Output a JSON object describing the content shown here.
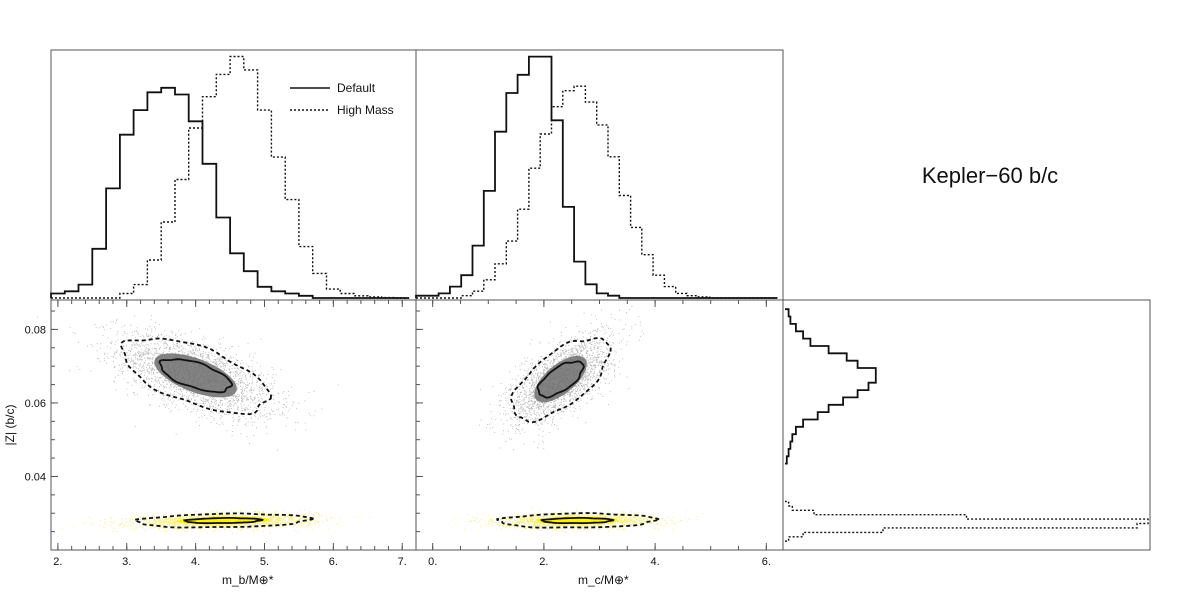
{
  "figure": {
    "title": "Kepler−60 b/c",
    "colors": {
      "frame": "#555555",
      "ink": "#111111",
      "default_cloud": "#777777",
      "high_cloud": "#f0e000",
      "high_core": "#ffee00"
    }
  },
  "chart_data": [
    {
      "type": "histogram",
      "panel": "top-left",
      "xlim": [
        1.9,
        7.2
      ],
      "legend": {
        "position": "top-right",
        "entries": [
          {
            "label": "Default",
            "style": "solid"
          },
          {
            "label": "High Mass",
            "style": "dotted"
          }
        ]
      },
      "bin_edges": [
        1.9,
        2.1,
        2.3,
        2.5,
        2.7,
        2.9,
        3.1,
        3.3,
        3.5,
        3.7,
        3.9,
        4.1,
        4.3,
        4.5,
        4.7,
        4.9,
        5.1,
        5.3,
        5.5,
        5.7,
        5.9,
        6.1,
        6.3,
        6.5,
        6.7,
        6.9,
        7.1
      ],
      "series": [
        {
          "name": "Default",
          "style": "solid",
          "values": [
            0.02,
            0.03,
            0.06,
            0.22,
            0.49,
            0.73,
            0.84,
            0.92,
            0.94,
            0.91,
            0.79,
            0.6,
            0.36,
            0.2,
            0.12,
            0.05,
            0.03,
            0.02,
            0.01,
            0,
            0,
            0,
            0,
            0,
            0,
            0
          ]
        },
        {
          "name": "High Mass",
          "style": "dotted",
          "values": [
            0,
            0,
            0,
            0,
            0,
            0.02,
            0.06,
            0.17,
            0.34,
            0.53,
            0.76,
            0.9,
            1.0,
            1.08,
            1.02,
            0.84,
            0.63,
            0.44,
            0.23,
            0.11,
            0.04,
            0.02,
            0.01,
            0.005,
            0.002,
            0
          ]
        }
      ]
    },
    {
      "type": "histogram",
      "panel": "top-middle",
      "xlim": [
        -0.5,
        6.0
      ],
      "bin_edges": [
        -0.5,
        -0.3,
        -0.1,
        0.1,
        0.3,
        0.5,
        0.7,
        0.9,
        1.1,
        1.3,
        1.5,
        1.7,
        1.9,
        2.1,
        2.3,
        2.5,
        2.7,
        2.9,
        3.1,
        3.3,
        3.5,
        3.7,
        3.9,
        4.1,
        4.3,
        4.5,
        4.7,
        4.9,
        5.1,
        5.3,
        5.5,
        5.7,
        5.9
      ],
      "series": [
        {
          "name": "Default",
          "style": "solid",
          "values": [
            0.01,
            0.01,
            0.02,
            0.05,
            0.1,
            0.23,
            0.47,
            0.73,
            0.9,
            0.98,
            1.06,
            1.06,
            0.78,
            0.4,
            0.16,
            0.06,
            0.02,
            0.01,
            0,
            0,
            0,
            0,
            0,
            0,
            0,
            0,
            0,
            0,
            0,
            0,
            0,
            0
          ]
        },
        {
          "name": "High Mass",
          "style": "dotted",
          "values": [
            0,
            0,
            0,
            0,
            0.01,
            0.03,
            0.08,
            0.15,
            0.25,
            0.39,
            0.57,
            0.72,
            0.84,
            0.91,
            0.93,
            0.86,
            0.76,
            0.62,
            0.45,
            0.31,
            0.19,
            0.1,
            0.05,
            0.02,
            0.01,
            0.005,
            0,
            0,
            0,
            0,
            0,
            0
          ]
        }
      ]
    },
    {
      "type": "scatter-density",
      "panel": "bottom-left",
      "xlabel": "m_b/M⊕*",
      "ylabel": "|Z| (b/c)",
      "xlim": [
        1.9,
        7.2
      ],
      "ylim": [
        0.02,
        0.088
      ],
      "xticks": [
        2,
        3,
        4,
        5,
        6,
        7
      ],
      "xtick_labels": [
        "2.",
        "3.",
        "4.",
        "5.",
        "6.",
        "7."
      ],
      "yticks": [
        0.04,
        0.06,
        0.08
      ],
      "ytick_labels": [
        "0.04",
        "0.06",
        "0.08"
      ],
      "clouds": [
        {
          "name": "Default",
          "center": [
            4.0,
            0.0675
          ],
          "sd": [
            0.57,
            0.0057
          ],
          "corr": -0.6,
          "contour68": [
            0.9,
            0.78
          ],
          "contour95": [
            1.2,
            1.15
          ]
        },
        {
          "name": "High Mass",
          "center": [
            4.4,
            0.028
          ],
          "sd": [
            0.65,
            0.001
          ],
          "corr": 0.2,
          "contour68": [
            0.85,
            0.7
          ],
          "contour95": [
            1.25,
            1.2
          ]
        }
      ]
    },
    {
      "type": "scatter-density",
      "panel": "bottom-middle",
      "xlabel": "m_c/M⊕*",
      "xlim": [
        -0.3,
        6.3
      ],
      "ylim": [
        0.02,
        0.088
      ],
      "xticks": [
        0,
        2,
        4,
        6
      ],
      "xtick_labels": [
        "0.",
        "2.",
        "4.",
        "6."
      ],
      "clouds": [
        {
          "name": "Default",
          "center": [
            2.3,
            0.0665
          ],
          "sd": [
            0.45,
            0.006
          ],
          "corr": 0.65,
          "contour68": [
            0.9,
            0.8
          ],
          "contour95": [
            1.25,
            1.2
          ]
        },
        {
          "name": "High Mass",
          "center": [
            2.6,
            0.028
          ],
          "sd": [
            0.7,
            0.001
          ],
          "corr": 0.1,
          "contour68": [
            0.9,
            0.7
          ],
          "contour95": [
            1.3,
            1.25
          ]
        }
      ]
    },
    {
      "type": "histogram",
      "panel": "right",
      "orientation": "horizontal",
      "ylim": [
        0.02,
        0.088
      ],
      "bin_edges": [
        0.0435,
        0.0455,
        0.0475,
        0.0495,
        0.0515,
        0.0535,
        0.0555,
        0.0575,
        0.0595,
        0.0615,
        0.0635,
        0.0655,
        0.0675,
        0.0695,
        0.0715,
        0.0735,
        0.0755,
        0.0775,
        0.0795,
        0.0815,
        0.0835,
        0.0855
      ],
      "bin_edges_high": [
        0.0224,
        0.0236,
        0.0248,
        0.026,
        0.0272,
        0.0284,
        0.0296,
        0.0308,
        0.032,
        0.0332
      ],
      "series": [
        {
          "name": "Default",
          "style": "solid",
          "values": [
            0.005,
            0.01,
            0.015,
            0.02,
            0.03,
            0.05,
            0.09,
            0.12,
            0.16,
            0.2,
            0.23,
            0.25,
            0.25,
            0.2,
            0.17,
            0.12,
            0.07,
            0.05,
            0.03,
            0.015,
            0.01
          ]
        },
        {
          "name": "High Mass",
          "style": "dotted",
          "values": [
            0.01,
            0.05,
            0.27,
            0.97,
            1.0,
            0.5,
            0.08,
            0.02,
            0.01
          ]
        }
      ]
    }
  ]
}
